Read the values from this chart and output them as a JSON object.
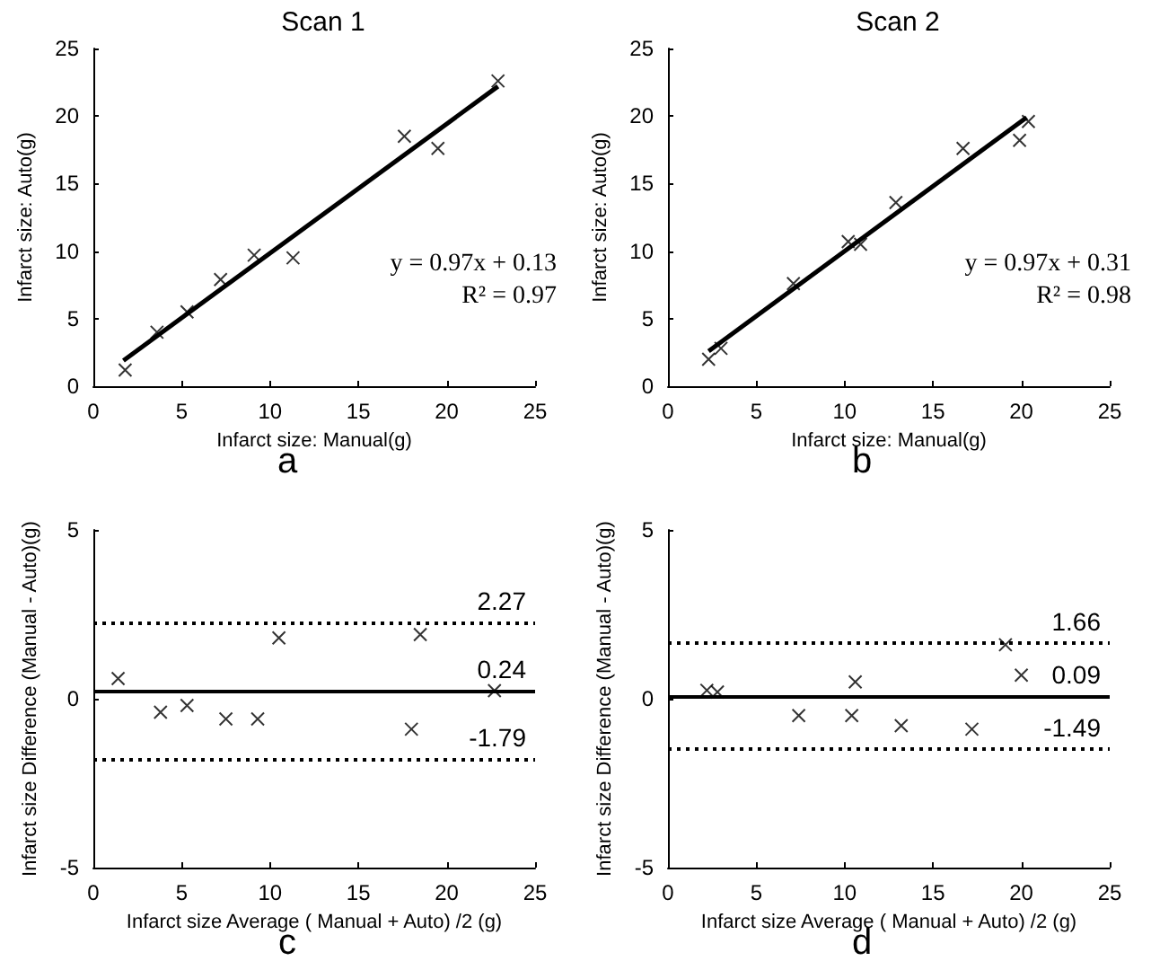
{
  "chart_data": [
    {
      "type": "scatter",
      "title": "Scan 1",
      "xlabel": "Infarct size: Manual(g)",
      "ylabel": "Infarct size: Auto(g)",
      "xlim": [
        0,
        25
      ],
      "xticks": [
        0,
        5,
        10,
        15,
        20,
        25
      ],
      "ylim": [
        0,
        25
      ],
      "yticks": [
        0,
        5,
        10,
        15,
        20,
        25
      ],
      "grid": false,
      "series": [
        {
          "color": "#000000",
          "marker": "cross",
          "x": [
            1.8,
            3.6,
            5.3,
            7.2,
            9.1,
            11.3,
            17.6,
            19.5,
            22.9
          ],
          "values": [
            1.2,
            4.0,
            5.5,
            7.9,
            9.7,
            9.5,
            18.5,
            17.6,
            22.6
          ]
        },
        {
          "type": "line",
          "marker": "none",
          "color": "#000000",
          "x": [
            1.7,
            22.9
          ],
          "values": [
            1.9,
            22.2
          ]
        }
      ],
      "annotations": [
        "y = 0.97x + 0.13",
        "R² = 0.97",
        "a"
      ]
    },
    {
      "type": "scatter",
      "title": "Scan 2",
      "xlabel": "Infarct size: Manual(g)",
      "ylabel": "Infarct size: Auto(g)",
      "xlim": [
        0,
        25
      ],
      "xticks": [
        0,
        5,
        10,
        15,
        20,
        25
      ],
      "ylim": [
        0,
        25
      ],
      "yticks": [
        0,
        5,
        10,
        15,
        20,
        25
      ],
      "grid": false,
      "series": [
        {
          "color": "#000000",
          "marker": "cross",
          "x": [
            2.3,
            3.0,
            7.1,
            10.2,
            10.9,
            12.9,
            16.7,
            19.9,
            20.4
          ],
          "values": [
            2.0,
            2.8,
            7.6,
            10.7,
            10.5,
            13.6,
            17.6,
            18.2,
            19.6
          ]
        },
        {
          "type": "line",
          "marker": "none",
          "color": "#000000",
          "x": [
            2.3,
            20.3
          ],
          "values": [
            2.6,
            19.9
          ]
        }
      ],
      "annotations": [
        "y = 0.97x + 0.31",
        "R² = 0.98",
        "b"
      ]
    },
    {
      "type": "scatter",
      "xlabel": "Infarct size Average ( Manual + Auto) /2 (g)",
      "ylabel": "Infarct size Difference (Manual - Auto)(g)",
      "xlim": [
        0,
        25
      ],
      "xticks": [
        0,
        5,
        10,
        15,
        20,
        25
      ],
      "ylim": [
        -5,
        5
      ],
      "yticks": [
        -5,
        0,
        5
      ],
      "grid": false,
      "series": [
        {
          "color": "#000000",
          "marker": "cross",
          "x": [
            1.4,
            3.8,
            5.3,
            7.5,
            9.3,
            10.5,
            18.0,
            18.5,
            22.7
          ],
          "values": [
            0.6,
            -0.4,
            -0.2,
            -0.6,
            -0.6,
            1.8,
            -0.9,
            1.9,
            0.24
          ]
        }
      ],
      "ref_lines": [
        {
          "axis": "y",
          "value": 2.27,
          "label": "2.27",
          "color": "#000000",
          "line_style": "dotted"
        },
        {
          "axis": "y",
          "value": 0.24,
          "label": "0.24",
          "color": "#000000",
          "line_style": "solid"
        },
        {
          "axis": "y",
          "value": -1.79,
          "label": "-1.79",
          "color": "#000000",
          "line_style": "dotted"
        }
      ],
      "annotations": [
        "c"
      ]
    },
    {
      "type": "scatter",
      "xlabel": "Infarct size Average ( Manual + Auto) /2 (g)",
      "ylabel": "Infarct size Difference (Manual - Auto)(g)",
      "xlim": [
        0,
        25
      ],
      "xticks": [
        0,
        5,
        10,
        15,
        20,
        25
      ],
      "ylim": [
        -5,
        5
      ],
      "yticks": [
        -5,
        0,
        5
      ],
      "grid": false,
      "series": [
        {
          "color": "#000000",
          "marker": "cross",
          "x": [
            2.2,
            2.8,
            7.4,
            10.4,
            10.6,
            13.2,
            17.2,
            19.1,
            20.0
          ],
          "values": [
            0.25,
            0.2,
            -0.5,
            -0.5,
            0.5,
            -0.8,
            -0.9,
            1.6,
            0.7
          ]
        }
      ],
      "ref_lines": [
        {
          "axis": "y",
          "value": 1.66,
          "label": "1.66",
          "color": "#000000",
          "line_style": "dotted"
        },
        {
          "axis": "y",
          "value": 0.09,
          "label": "0.09",
          "color": "#000000",
          "line_style": "solid"
        },
        {
          "axis": "y",
          "value": -1.49,
          "label": "-1.49",
          "color": "#000000",
          "line_style": "dotted"
        }
      ],
      "annotations": [
        "d"
      ]
    }
  ]
}
